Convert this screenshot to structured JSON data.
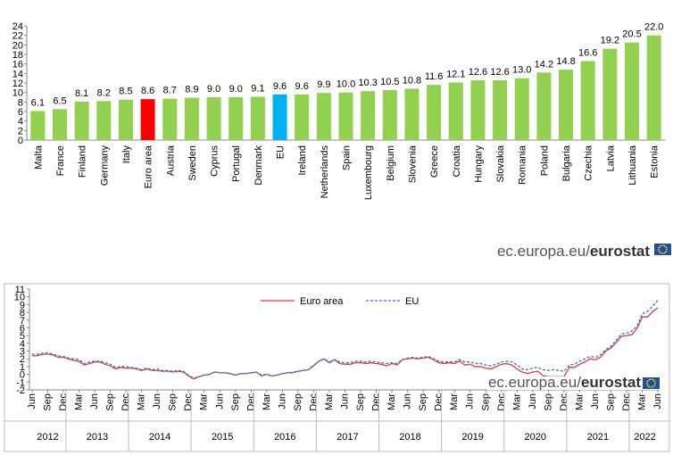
{
  "chart_data": [
    {
      "type": "bar",
      "categories": [
        "Malta",
        "France",
        "Finland",
        "Germany",
        "Italy",
        "Euro area",
        "Austria",
        "Sweden",
        "Cyprus",
        "Portugal",
        "Denmark",
        "EU",
        "Ireland",
        "Netherlands",
        "Spain",
        "Luxembourg",
        "Belgium",
        "Slovenia",
        "Greece",
        "Croatia",
        "Hungary",
        "Slovakia",
        "Romania",
        "Poland",
        "Bulgaria",
        "Czechia",
        "Latvia",
        "Lithuania",
        "Estonia"
      ],
      "values": [
        6.1,
        6.5,
        8.1,
        8.2,
        8.5,
        8.6,
        8.7,
        8.9,
        9.0,
        9.0,
        9.1,
        9.6,
        9.6,
        9.9,
        10.0,
        10.3,
        10.5,
        10.8,
        11.6,
        12.1,
        12.6,
        12.6,
        13.0,
        14.2,
        14.8,
        16.6,
        19.2,
        20.5,
        22.0
      ],
      "value_labels": [
        "6.1",
        "6.5",
        "8.1",
        "8.2",
        "8.5",
        "8.6",
        "8.7",
        "8.9",
        "9.0",
        "9.0",
        "9.1",
        "9.6",
        "9.6",
        "9.9",
        "10.0",
        "10.3",
        "10.5",
        "10.8",
        "11.6",
        "12.1",
        "12.6",
        "12.6",
        "13.0",
        "14.2",
        "14.8",
        "16.6",
        "19.2",
        "20.5",
        "22.0"
      ],
      "colors": [
        "#92d050",
        "#92d050",
        "#92d050",
        "#92d050",
        "#92d050",
        "#ff0000",
        "#92d050",
        "#92d050",
        "#92d050",
        "#92d050",
        "#92d050",
        "#00b0f0",
        "#92d050",
        "#92d050",
        "#92d050",
        "#92d050",
        "#92d050",
        "#92d050",
        "#92d050",
        "#92d050",
        "#92d050",
        "#92d050",
        "#92d050",
        "#92d050",
        "#92d050",
        "#92d050",
        "#92d050",
        "#92d050",
        "#92d050"
      ],
      "ylim": [
        0,
        24
      ],
      "yticks": [
        0,
        2,
        4,
        6,
        8,
        10,
        12,
        14,
        16,
        18,
        20,
        22,
        24
      ],
      "source": [
        "ec.europa.eu/",
        "eurostat"
      ]
    },
    {
      "type": "line",
      "categories": [
        "Jun",
        null,
        null,
        "Sep",
        null,
        null,
        "Dec",
        null,
        null,
        "Mar",
        null,
        null,
        "Jun",
        null,
        null,
        "Sep",
        null,
        null,
        "Dec",
        null,
        null,
        "Mar",
        null,
        null,
        "Jun",
        null,
        null,
        "Sep",
        null,
        null,
        "Dec",
        null,
        null,
        "Mar",
        null,
        null,
        "Jun",
        null,
        null,
        "Sep",
        null,
        null,
        "Dec",
        null,
        null,
        "Mar",
        null,
        null,
        "Jun",
        null,
        null,
        "Sep",
        null,
        null,
        "Dec",
        null,
        null,
        "Mar",
        null,
        null,
        "Jun",
        null,
        null,
        "Sep",
        null,
        null,
        "Dec",
        null,
        null,
        "Mar",
        null,
        null,
        "Jun",
        null,
        null,
        "Sep",
        null,
        null,
        "Dec",
        null,
        null,
        "Mar",
        null,
        null,
        "Jun",
        null,
        null,
        "Sep",
        null,
        null,
        "Dec",
        null,
        null,
        "Mar",
        null,
        null,
        "Jun",
        null,
        null,
        "Sep",
        null,
        null,
        "Dec",
        null,
        null,
        "Mar",
        null,
        null,
        "Jun",
        null,
        null,
        "Sep",
        null,
        null,
        "Dec",
        null,
        null,
        "Mar",
        null,
        null,
        "Jun"
      ],
      "years": [
        "2012",
        "2013",
        "2014",
        "2015",
        "2016",
        "2017",
        "2018",
        "2019",
        "2020",
        "2021",
        "2022"
      ],
      "series": [
        {
          "name": "Euro area",
          "color": "#e0393e",
          "dashed": false,
          "values": [
            2.4,
            2.4,
            2.6,
            2.6,
            2.5,
            2.2,
            2.2,
            2.0,
            1.8,
            1.7,
            1.2,
            1.4,
            1.6,
            1.6,
            1.3,
            1.1,
            0.7,
            0.9,
            0.8,
            0.8,
            0.7,
            0.5,
            0.7,
            0.5,
            0.5,
            0.4,
            0.4,
            0.3,
            0.4,
            0.3,
            -0.2,
            -0.6,
            -0.3,
            -0.1,
            0.0,
            0.3,
            0.2,
            0.2,
            0.1,
            -0.1,
            0.1,
            0.1,
            0.2,
            0.3,
            -0.2,
            0.0,
            -0.2,
            -0.1,
            0.1,
            0.2,
            0.2,
            0.4,
            0.5,
            0.6,
            1.1,
            1.7,
            2.0,
            1.5,
            1.9,
            1.4,
            1.3,
            1.3,
            1.5,
            1.5,
            1.4,
            1.5,
            1.4,
            1.3,
            1.1,
            1.4,
            1.2,
            1.9,
            2.0,
            2.1,
            2.0,
            2.1,
            2.2,
            1.9,
            1.5,
            1.4,
            1.5,
            1.4,
            1.7,
            1.2,
            1.3,
            1.0,
            1.0,
            0.8,
            0.7,
            1.0,
            1.3,
            1.4,
            1.2,
            0.7,
            0.3,
            0.1,
            0.3,
            0.4,
            -0.2,
            -0.3,
            -0.3,
            -0.3,
            -0.3,
            0.9,
            0.9,
            1.3,
            1.6,
            2.0,
            1.9,
            2.2,
            3.0,
            3.4,
            4.1,
            4.9,
            5.0,
            5.1,
            5.9,
            7.4,
            7.4,
            8.1,
            8.6
          ]
        },
        {
          "name": "EU",
          "color": "#2e75d6",
          "dashed": true,
          "values": [
            2.6,
            2.6,
            2.7,
            2.8,
            2.6,
            2.4,
            2.3,
            2.1,
            2.0,
            1.9,
            1.4,
            1.6,
            1.7,
            1.7,
            1.5,
            1.3,
            0.9,
            1.0,
            1.0,
            0.9,
            0.8,
            0.6,
            0.8,
            0.6,
            0.7,
            0.5,
            0.5,
            0.4,
            0.5,
            0.4,
            -0.1,
            -0.5,
            -0.3,
            -0.1,
            0.0,
            0.3,
            0.2,
            0.2,
            0.1,
            -0.1,
            0.1,
            0.1,
            0.2,
            0.3,
            -0.1,
            0.0,
            -0.2,
            -0.1,
            0.1,
            0.2,
            0.3,
            0.4,
            0.5,
            0.6,
            1.2,
            1.7,
            2.0,
            1.6,
            1.9,
            1.6,
            1.5,
            1.5,
            1.7,
            1.7,
            1.6,
            1.7,
            1.6,
            1.5,
            1.4,
            1.5,
            1.4,
            1.9,
            2.1,
            2.2,
            2.1,
            2.2,
            2.3,
            2.0,
            1.7,
            1.6,
            1.6,
            1.6,
            1.9,
            1.6,
            1.6,
            1.4,
            1.4,
            1.2,
            1.1,
            1.3,
            1.6,
            1.7,
            1.6,
            1.2,
            0.7,
            0.6,
            0.8,
            0.9,
            0.6,
            0.5,
            0.6,
            0.5,
            0.4,
            1.2,
            1.3,
            1.7,
            2.0,
            2.3,
            2.2,
            2.5,
            3.2,
            3.6,
            4.4,
            5.2,
            5.3,
            5.6,
            6.2,
            7.8,
            8.1,
            8.8,
            9.6
          ]
        }
      ],
      "ylim": [
        -2,
        11
      ],
      "yticks": [
        -2,
        -1,
        0,
        1,
        2,
        3,
        4,
        5,
        6,
        7,
        8,
        9,
        10,
        11
      ],
      "source": [
        "ec.europa.eu/",
        "eurostat"
      ]
    }
  ]
}
